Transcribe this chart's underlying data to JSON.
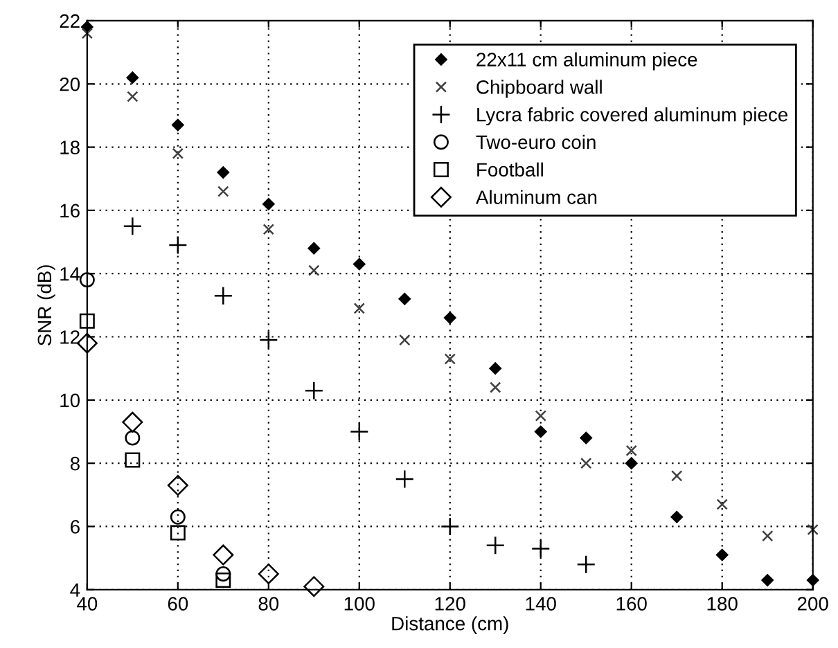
{
  "chart_data": {
    "type": "scatter",
    "xlabel": "Distance (cm)",
    "ylabel": "SNR (dB)",
    "xlim": [
      40,
      200
    ],
    "ylim": [
      4,
      22
    ],
    "xticks": [
      40,
      60,
      80,
      100,
      120,
      140,
      160,
      180,
      200
    ],
    "yticks": [
      4,
      6,
      8,
      10,
      12,
      14,
      16,
      18,
      20,
      22
    ],
    "grid": true,
    "legend": "top right",
    "series": [
      {
        "name": "22x11 cm aluminum piece",
        "color": "#000000",
        "marker": "diamond",
        "x": [
          40,
          50,
          60,
          70,
          80,
          90,
          100,
          110,
          120,
          130,
          140,
          150,
          160,
          170,
          180,
          190,
          200
        ],
        "values": [
          21.8,
          20.2,
          18.7,
          17.2,
          16.2,
          14.8,
          14.3,
          13.2,
          12.6,
          11.0,
          9.0,
          8.8,
          8.0,
          6.3,
          5.1,
          4.3,
          4.3
        ]
      },
      {
        "name": "Chipboard wall",
        "color": "#404040",
        "marker": "cross",
        "x": [
          40,
          50,
          60,
          70,
          80,
          90,
          100,
          110,
          120,
          130,
          140,
          150,
          160,
          170,
          180,
          190,
          200
        ],
        "values": [
          21.6,
          19.6,
          17.8,
          16.6,
          15.4,
          14.1,
          12.9,
          11.9,
          11.3,
          10.4,
          9.5,
          8.0,
          8.4,
          7.6,
          6.7,
          5.7,
          5.9
        ]
      },
      {
        "name": "Lycra fabric covered aluminum piece",
        "color": "#000000",
        "marker": "plus",
        "x": [
          50,
          60,
          70,
          80,
          90,
          100,
          110,
          120,
          130,
          140,
          150
        ],
        "values": [
          15.5,
          14.9,
          13.3,
          11.9,
          10.3,
          9.0,
          7.5,
          6.0,
          5.4,
          5.3,
          4.8
        ]
      },
      {
        "name": "Two-euro coin",
        "color": "#000000",
        "marker": "circle",
        "x": [
          40,
          50,
          60,
          70
        ],
        "values": [
          13.8,
          8.8,
          6.3,
          4.5
        ]
      },
      {
        "name": "Football",
        "color": "#000000",
        "marker": "square",
        "x": [
          40,
          50,
          60,
          70
        ],
        "values": [
          12.5,
          8.1,
          5.8,
          4.3
        ]
      },
      {
        "name": "Aluminum can",
        "color": "#000000",
        "marker": "diamond",
        "x": [
          40,
          50,
          60,
          70,
          80,
          90
        ],
        "values": [
          11.8,
          9.3,
          7.3,
          5.1,
          4.5,
          4.1
        ]
      }
    ]
  }
}
